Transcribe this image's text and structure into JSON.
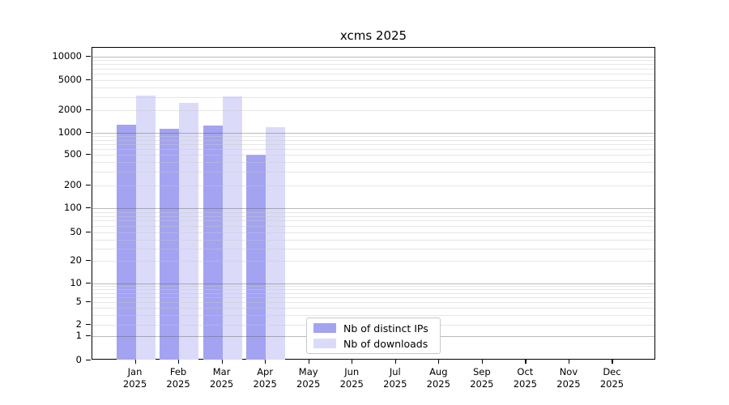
{
  "chart_data": {
    "type": "bar",
    "title": "xcms 2025",
    "categories": [
      "Jan",
      "Feb",
      "Mar",
      "Apr",
      "May",
      "Jun",
      "Jul",
      "Aug",
      "Sep",
      "Oct",
      "Nov",
      "Dec"
    ],
    "x_year_suffix": "2025",
    "series": [
      {
        "name": "Nb of distinct IPs",
        "color": "#a3a3f1",
        "values": [
          1280,
          1130,
          1240,
          505,
          null,
          null,
          null,
          null,
          null,
          null,
          null,
          null
        ]
      },
      {
        "name": "Nb of downloads",
        "color": "#dbdbf9",
        "values": [
          3100,
          2520,
          3020,
          1200,
          null,
          null,
          null,
          null,
          null,
          null,
          null,
          null
        ]
      }
    ],
    "y_ticks": [
      0,
      1,
      2,
      5,
      10,
      20,
      50,
      100,
      200,
      500,
      1000,
      2000,
      5000,
      10000
    ],
    "y_scale": "log-with-zero-baseline",
    "grid": "horizontal, log minor lines light gray, decade lines darker gray",
    "legend_position": "lower center",
    "background": "#ffffff",
    "axis_color": "#000000"
  }
}
